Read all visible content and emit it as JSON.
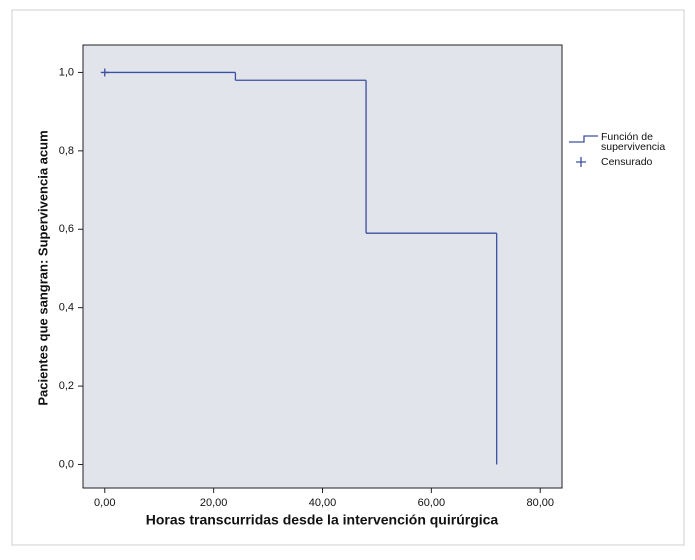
{
  "chart_data": {
    "type": "step",
    "x_label": "Horas transcurridas desde la intervención quirúrgica",
    "y_label": "Pacientes que sangran: Supervivencia acum",
    "xlim": [
      -4,
      84
    ],
    "ylim": [
      -0.06,
      1.07
    ],
    "xticks": [
      {
        "value": 0,
        "label": "0,00"
      },
      {
        "value": 20,
        "label": "20,00"
      },
      {
        "value": 40,
        "label": "40,00"
      },
      {
        "value": 60,
        "label": "60,00"
      },
      {
        "value": 80,
        "label": "80,00"
      }
    ],
    "yticks": [
      {
        "value": 0,
        "label": "0,0"
      },
      {
        "value": 0.2,
        "label": "0,2"
      },
      {
        "value": 0.4,
        "label": "0,4"
      },
      {
        "value": 0.6,
        "label": "0,6"
      },
      {
        "value": 0.8,
        "label": "0,8"
      },
      {
        "value": 1.0,
        "label": "1,0"
      }
    ],
    "series": [
      {
        "name": "Función de supervivencia",
        "color": "#3d4fa0",
        "x": [
          0,
          24,
          48,
          72
        ],
        "values": [
          1.0,
          0.98,
          0.59,
          0
        ]
      },
      {
        "name": "Censurado",
        "color": "#3d4fa0",
        "x": [
          0
        ],
        "values": [
          1.0
        ]
      }
    ]
  }
}
